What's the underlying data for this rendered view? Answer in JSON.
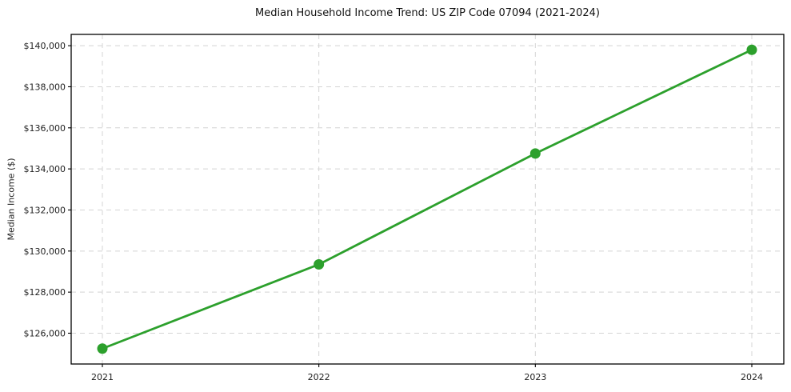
{
  "chart_data": {
    "type": "line",
    "title": "Median Household Income Trend: US ZIP Code 07094 (2021-2024)",
    "xlabel": "",
    "ylabel": "Median Income ($)",
    "categories": [
      "2021",
      "2022",
      "2023",
      "2024"
    ],
    "values": [
      125250,
      129350,
      134750,
      139800
    ],
    "ylim": [
      124500,
      140550
    ],
    "y_ticks": [
      {
        "value": 126000,
        "label": "$126,000"
      },
      {
        "value": 128000,
        "label": "$128,000"
      },
      {
        "value": 130000,
        "label": "$130,000"
      },
      {
        "value": 132000,
        "label": "$132,000"
      },
      {
        "value": 134000,
        "label": "$134,000"
      },
      {
        "value": 136000,
        "label": "$136,000"
      },
      {
        "value": 138000,
        "label": "$138,000"
      },
      {
        "value": 140000,
        "label": "$140,000"
      }
    ],
    "grid": true,
    "grid_style": "dashed",
    "legend": false,
    "marker": "circle",
    "line_color": "#2ca02c",
    "background_color": "#ffffff"
  }
}
